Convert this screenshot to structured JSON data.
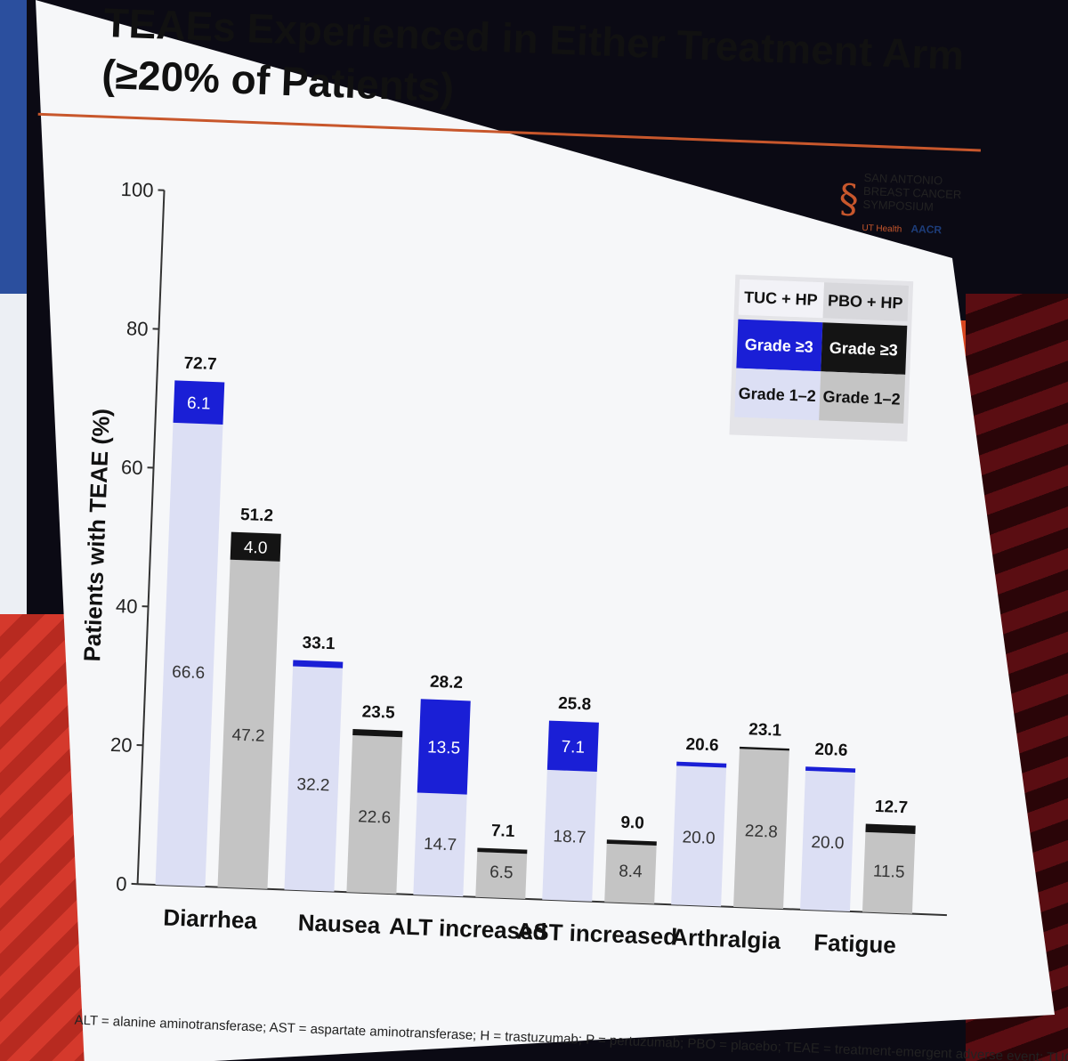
{
  "slide": {
    "title_line1": "TEAEs Experienced in Either Treatment Arm",
    "title_line2": "(≥20% of Patients)",
    "footnote": "ALT = alanine aminotransferase; AST = aspartate aminotransferase; H = trastuzumab; P = pertuzumab; PBO = placebo; TEAE = treatment-emergent adverse event; TUC = tucatinib",
    "logo": {
      "line1": "SAN ANTONIO",
      "line2": "BREAST CANCER",
      "line3": "SYMPOSIUM",
      "sponsor1": "UT Health",
      "sponsor2": "AACR"
    }
  },
  "legend": {
    "arm1": "TUC + HP",
    "arm2": "PBO + HP",
    "grade3_label": "Grade ≥3",
    "grade12_label": "Grade 1–2"
  },
  "colors": {
    "tuc_grade3": "#1a1fd6",
    "tuc_grade12": "#dcdff4",
    "pbo_grade3": "#141414",
    "pbo_grade12": "#c4c4c4",
    "accent_line": "#c8572c"
  },
  "chart_data": {
    "type": "bar",
    "stacked": true,
    "grouped": true,
    "ylabel": "Patients with TEAE (%)",
    "xlabel": "",
    "ylim": [
      0,
      100
    ],
    "yticks": [
      0,
      20,
      40,
      60,
      80,
      100
    ],
    "categories": [
      "Diarrhea",
      "Nausea",
      "ALT increased",
      "AST increased",
      "Arthralgia",
      "Fatigue"
    ],
    "series": [
      {
        "name": "TUC + HP",
        "totals": [
          72.7,
          33.1,
          28.2,
          25.8,
          20.6,
          20.6
        ],
        "grade_1_2": [
          66.6,
          32.2,
          14.7,
          18.7,
          20.0,
          20.0
        ],
        "grade_3_plus": [
          6.1,
          0.9,
          13.5,
          7.1,
          0.6,
          0.6
        ],
        "grade_3_plus_labels": [
          "6.1",
          "",
          "13.5",
          "7.1",
          "",
          ""
        ]
      },
      {
        "name": "PBO + HP",
        "totals": [
          51.2,
          23.5,
          7.1,
          9.0,
          23.1,
          12.7
        ],
        "grade_1_2": [
          47.2,
          22.6,
          6.5,
          8.4,
          22.8,
          11.5
        ],
        "grade_3_plus": [
          4.0,
          0.9,
          0.6,
          0.6,
          0.3,
          1.2
        ],
        "grade_3_plus_labels": [
          "4.0",
          "",
          "",
          "",
          "",
          ""
        ]
      }
    ]
  }
}
